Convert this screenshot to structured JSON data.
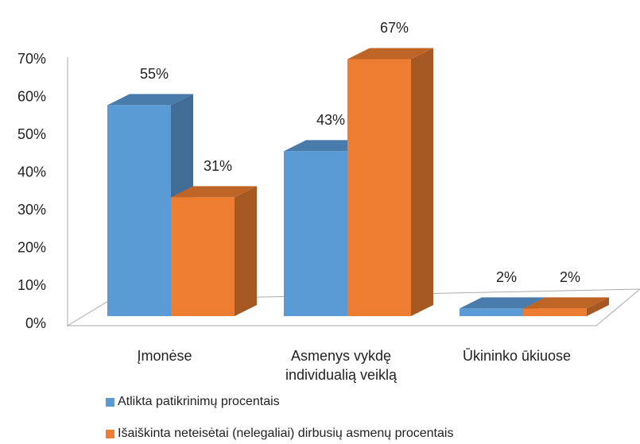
{
  "chart_data": {
    "type": "bar3d",
    "categories": [
      "Įmonėse",
      "Asmenys vykdę individualią veiklą",
      "Ūkininko ūkiuose"
    ],
    "series": [
      {
        "name": "Atlikta patikrinimų procentais",
        "color": "#5b9bd5",
        "values": [
          55,
          43,
          2
        ],
        "value_labels": [
          "55%",
          "43%",
          "2%"
        ]
      },
      {
        "name": "Išaiškinta neteisėtai (nelegaliai) dirbusių asmenų procentais",
        "color": "#ed7d31",
        "values": [
          31,
          67,
          2
        ],
        "value_labels": [
          "31%",
          "67%",
          "2%"
        ]
      }
    ],
    "ylim": [
      0,
      70
    ],
    "yticks": [
      {
        "value": 0,
        "label": "0%"
      },
      {
        "value": 10,
        "label": "10%"
      },
      {
        "value": 20,
        "label": "20%"
      },
      {
        "value": 30,
        "label": "30%"
      },
      {
        "value": 40,
        "label": "40%"
      },
      {
        "value": 50,
        "label": "50%"
      },
      {
        "value": 60,
        "label": "60%"
      },
      {
        "value": 70,
        "label": "70%"
      }
    ],
    "legend": "bottom-left",
    "grid": false
  }
}
